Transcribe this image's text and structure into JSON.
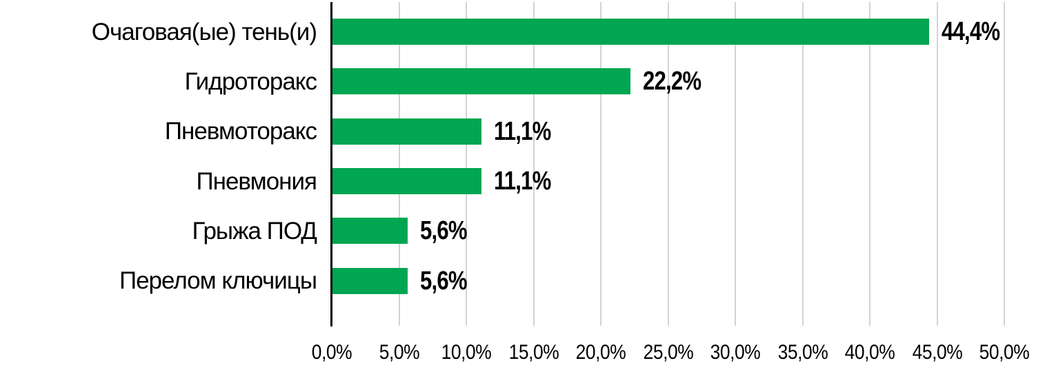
{
  "chart_data": {
    "type": "bar",
    "orientation": "horizontal",
    "title": "",
    "categories": [
      "Очаговая(ые) тень(и)",
      "Гидроторакс",
      "Пневмоторакс",
      "Пневмония",
      "Грыжа ПОД",
      "Перелом ключицы"
    ],
    "values": [
      44.4,
      22.2,
      11.1,
      11.1,
      5.6,
      5.6
    ],
    "value_labels": [
      "44,4%",
      "22,2%",
      "11,1%",
      "11,1%",
      "5,6%",
      "5,6%"
    ],
    "x_tick_labels": [
      "0,0%",
      "5,0%",
      "10,0%",
      "15,0%",
      "20,0%",
      "25,0%",
      "30,0%",
      "35,0%",
      "40,0%",
      "45,0%",
      "50,0%"
    ],
    "xlim": [
      0,
      50
    ],
    "x_tick_step": 5,
    "grid": "vertical-only",
    "legend": "none",
    "colors": {
      "bar": "#00a651",
      "gridline": "#d3d3d3",
      "axis": "#000000",
      "text": "#000000",
      "background": "#ffffff"
    }
  }
}
